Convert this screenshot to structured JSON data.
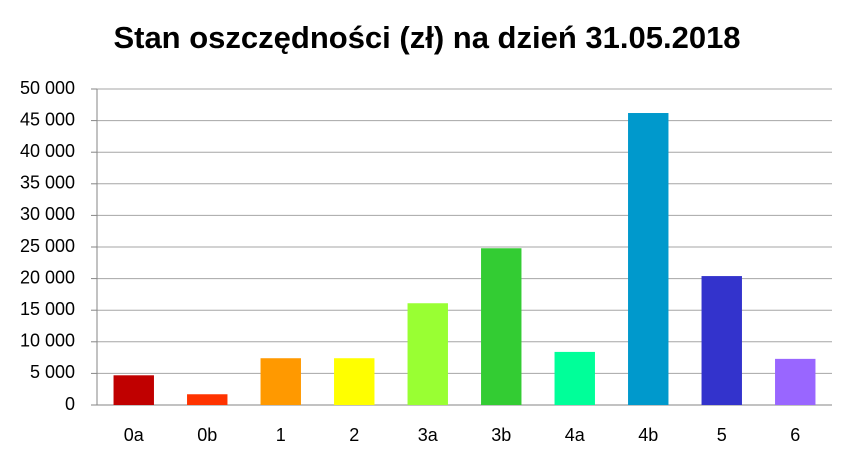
{
  "chart_data": {
    "type": "bar",
    "title": "Stan oszczędności (zł) na dzień 31.05.2018",
    "categories": [
      "0a",
      "0b",
      "1",
      "2",
      "3a",
      "3b",
      "4a",
      "4b",
      "5",
      "6"
    ],
    "values": [
      4700,
      1700,
      7400,
      7400,
      16100,
      24800,
      8400,
      46200,
      20400,
      7300
    ],
    "colors": [
      "#c00000",
      "#ff3300",
      "#ff9900",
      "#ffff00",
      "#99ff33",
      "#33cc33",
      "#00ff99",
      "#0099cc",
      "#3333cc",
      "#9966ff"
    ],
    "ylim": [
      0,
      50000
    ],
    "yticks": [
      0,
      {
        "value": 5000,
        "label": "5 000"
      },
      {
        "value": 10000,
        "label": "10 000"
      },
      {
        "value": 15000,
        "label": "15 000"
      },
      {
        "value": 20000,
        "label": "20 000"
      },
      {
        "value": 25000,
        "label": "25 000"
      },
      {
        "value": 30000,
        "label": "30 000"
      },
      {
        "value": 35000,
        "label": "35 000"
      },
      {
        "value": 40000,
        "label": "40 000"
      },
      {
        "value": 45000,
        "label": "45 000"
      },
      {
        "value": 50000,
        "label": "50 000"
      }
    ],
    "grid": true
  }
}
